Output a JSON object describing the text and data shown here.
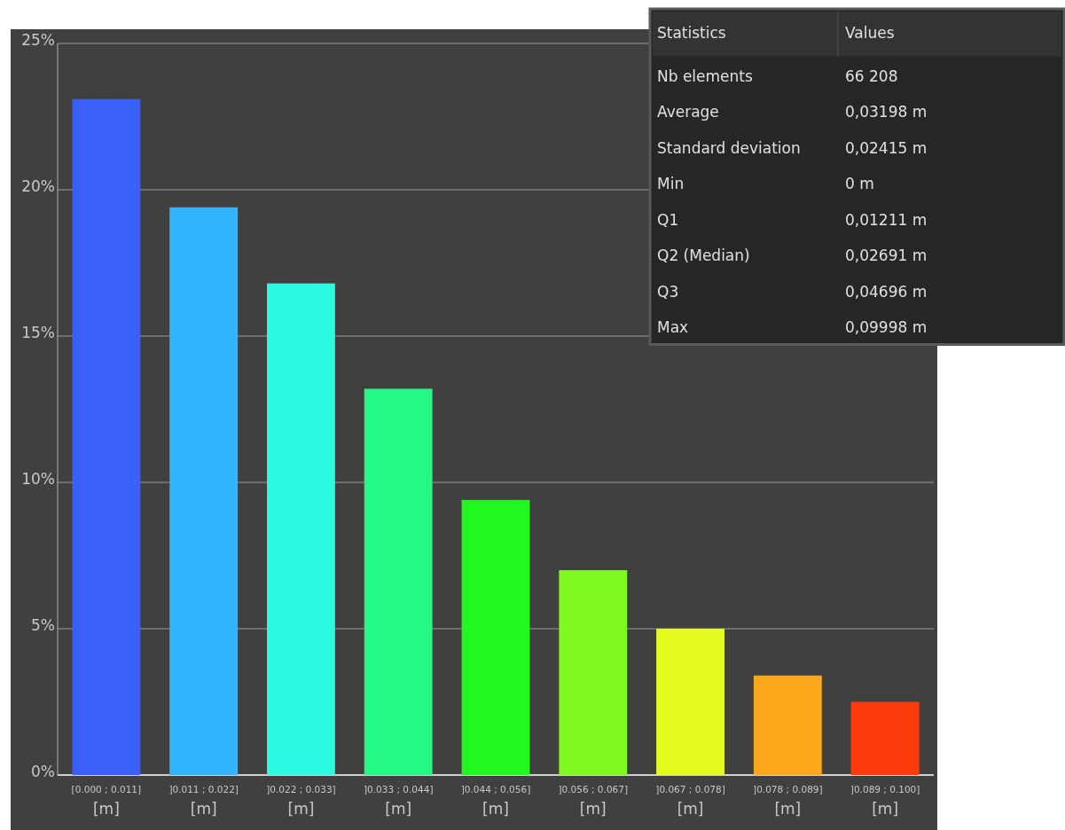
{
  "chart_data": {
    "type": "bar",
    "categories": [
      "[0.000 ; 0.011]\n[m]",
      "]0.011 ; 0.022]\n[m]",
      "]0.022 ; 0.033]\n[m]",
      "]0.033 ; 0.044]\n[m]",
      "]0.044 ; 0.056]\n[m]",
      "]0.056 ; 0.067]\n[m]",
      "]0.067 ; 0.078]\n[m]",
      "]0.078 ; 0.089]\n[m]",
      "]0.089 ; 0.100]\n[m]"
    ],
    "values": [
      23.1,
      19.4,
      16.8,
      13.2,
      9.4,
      7.0,
      5.0,
      3.4,
      2.5
    ],
    "colors": [
      "#3a5ffb",
      "#33b5fd",
      "#2cfbe2",
      "#25f884",
      "#21f821",
      "#7ff81f",
      "#e5fb1f",
      "#fca81a",
      "#fc3c0a"
    ],
    "ylim": [
      0,
      25
    ],
    "yticks": [
      {
        "value": 0,
        "label": "0%"
      },
      {
        "value": 5,
        "label": "5%"
      },
      {
        "value": 10,
        "label": "10%"
      },
      {
        "value": 15,
        "label": "15%"
      },
      {
        "value": 20,
        "label": "20%"
      },
      {
        "value": 25,
        "label": "25%"
      }
    ],
    "grid": "y",
    "annotations": [
      "Statistics",
      "Values",
      "Nb elements",
      "66 208",
      "Average",
      "0,03198 m",
      "Standard deviation",
      "0,02415 m",
      "Min",
      "0 m",
      "Q1",
      "0,01211 m",
      "Q2 (Median)",
      "0,02691 m",
      "Q3",
      "0,04696 m",
      "Max",
      "0,09998 m"
    ]
  }
}
